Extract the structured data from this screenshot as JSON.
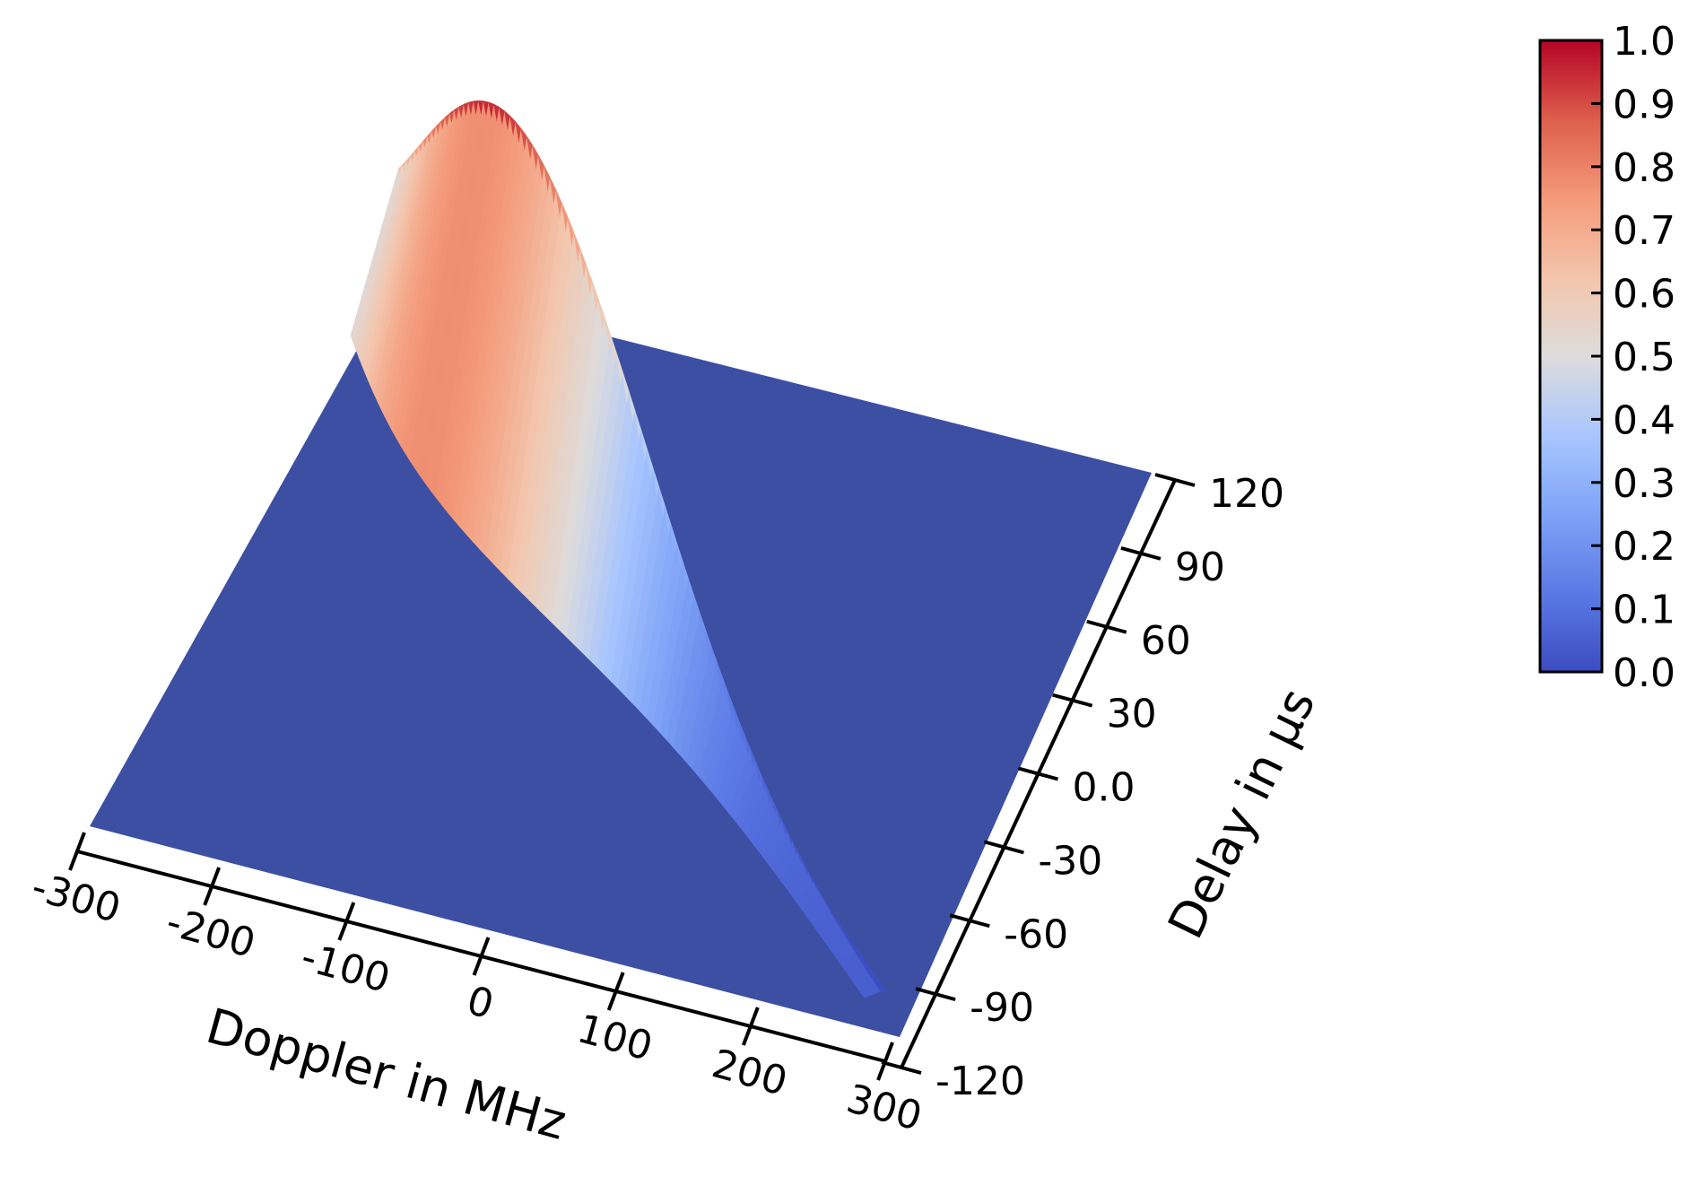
{
  "chart_data": {
    "type": "surface3d",
    "title": "",
    "colormap": "coolwarm",
    "x_axis": {
      "label": "Doppler in MHz",
      "range": [
        -300,
        300
      ],
      "ticks": [
        "-300",
        "-200",
        "-100",
        "0",
        "100",
        "200",
        "300"
      ]
    },
    "y_axis": {
      "label": "Delay in μs",
      "range": [
        -120,
        120
      ],
      "ticks": [
        "-120",
        "-90",
        "-60",
        "-30",
        "0.0",
        "30",
        "60",
        "90",
        "120"
      ]
    },
    "z_axis": {
      "label": "",
      "range": [
        0.0,
        1.0
      ],
      "visible": false
    },
    "colorbar": {
      "range": [
        0.0,
        1.0
      ],
      "ticks": [
        "0.0",
        "0.1",
        "0.2",
        "0.3",
        "0.4",
        "0.5",
        "0.6",
        "0.7",
        "0.8",
        "0.9",
        "1.0"
      ]
    },
    "colors": {
      "low": "#3b4ca0",
      "mid": "#dddddd",
      "high": "#b40426"
    },
    "surface": {
      "description_free_model": "ridge",
      "ridge_line": [
        {
          "doppler": 300,
          "delay": -120
        },
        {
          "doppler": -300,
          "delay": 120
        }
      ],
      "peak": {
        "doppler": 0,
        "delay": 0,
        "value": 1.0
      },
      "floor_value": 0.0
    }
  }
}
